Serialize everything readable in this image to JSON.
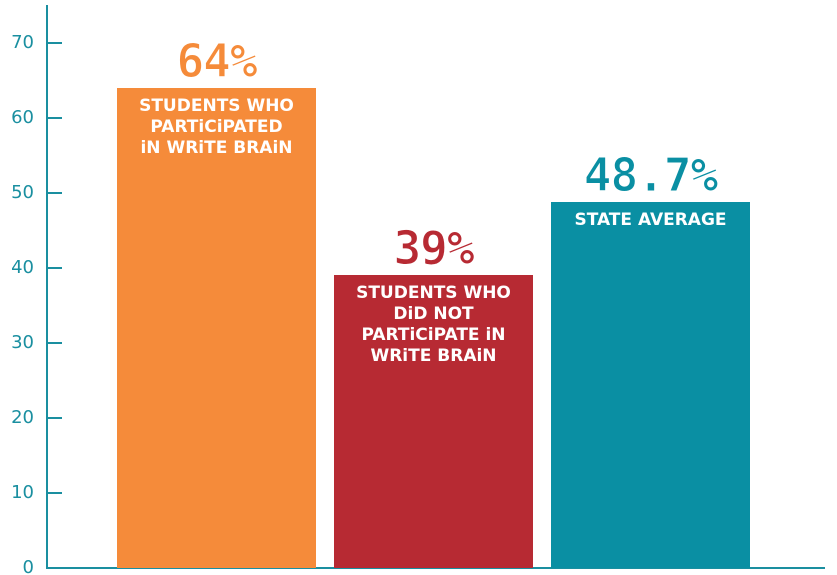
{
  "chart_data": {
    "type": "bar",
    "categories": [
      "STUDENTS WHO PARTiCiPATED iN WRiTE BRAiN",
      "STUDENTS WHO DiD NOT PARTiCiPATE iN WRiTE BRAiN",
      "STATE AVERAGE"
    ],
    "values": [
      64,
      39,
      48.7
    ],
    "value_labels": [
      "64%",
      "39%",
      "48.7%"
    ],
    "colors": [
      "#f58b3a",
      "#b72a33",
      "#0a8fa3"
    ],
    "ylim": [
      0,
      75
    ],
    "yticks": [
      0,
      10,
      20,
      30,
      40,
      50,
      60,
      70
    ],
    "grid": false
  }
}
